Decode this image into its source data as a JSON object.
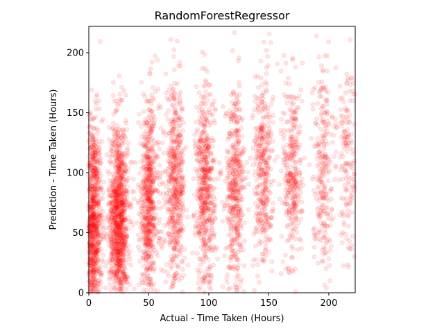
{
  "chart_data": {
    "type": "scatter",
    "title": "RandomForestRegressor",
    "xlabel": "Actual - Time Taken (Hours)",
    "ylabel": "Prediction - Time Taken (Hours)",
    "xlim": [
      0,
      222
    ],
    "ylim": [
      0,
      222
    ],
    "xticks": [
      0,
      50,
      100,
      150,
      200
    ],
    "yticks": [
      0,
      50,
      100,
      150,
      200
    ],
    "grid": false,
    "marker_color": "#ff0000",
    "marker_alpha": 0.1,
    "clusters": [
      {
        "x": 3,
        "y_center": 55,
        "y_spread": 45,
        "n": 1100
      },
      {
        "x": 25,
        "y_center": 60,
        "y_spread": 42,
        "n": 1100
      },
      {
        "x": 50,
        "y_center": 75,
        "y_spread": 42,
        "n": 650
      },
      {
        "x": 72,
        "y_center": 85,
        "y_spread": 42,
        "n": 550
      },
      {
        "x": 97,
        "y_center": 85,
        "y_spread": 42,
        "n": 550
      },
      {
        "x": 122,
        "y_center": 88,
        "y_spread": 42,
        "n": 450
      },
      {
        "x": 145,
        "y_center": 100,
        "y_spread": 42,
        "n": 380
      },
      {
        "x": 170,
        "y_center": 100,
        "y_spread": 42,
        "n": 330
      },
      {
        "x": 195,
        "y_center": 105,
        "y_spread": 45,
        "n": 260
      },
      {
        "x": 215,
        "y_center": 110,
        "y_spread": 45,
        "n": 160
      }
    ]
  }
}
